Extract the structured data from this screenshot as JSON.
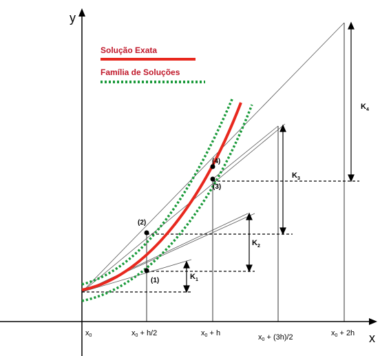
{
  "axes": {
    "y_label": "y",
    "x_label": "x"
  },
  "legend": {
    "exact": "Solução Exata",
    "family": "Família de Soluções"
  },
  "ticks": [
    {
      "base": "x",
      "sub": "0",
      "rest": ""
    },
    {
      "base": "x",
      "sub": "0",
      "rest": " + h/2"
    },
    {
      "base": "x",
      "sub": "0",
      "rest": " + h"
    },
    {
      "base": "x",
      "sub": "0",
      "rest": " + (3h)/2"
    },
    {
      "base": "x",
      "sub": "0",
      "rest": " + 2h"
    }
  ],
  "points": [
    "(1)",
    "(2)",
    "(3)",
    "(4)"
  ],
  "k_labels": [
    {
      "letter": "K",
      "index": "1"
    },
    {
      "letter": "K",
      "index": "2"
    },
    {
      "letter": "K",
      "index": "3"
    },
    {
      "letter": "K",
      "index": "4"
    }
  ],
  "colors": {
    "exact": "#e8281e",
    "family": "#1a9a3a",
    "legend_text": "#c0182a",
    "line": "#000000",
    "tangent": "#7a7a7a"
  }
}
